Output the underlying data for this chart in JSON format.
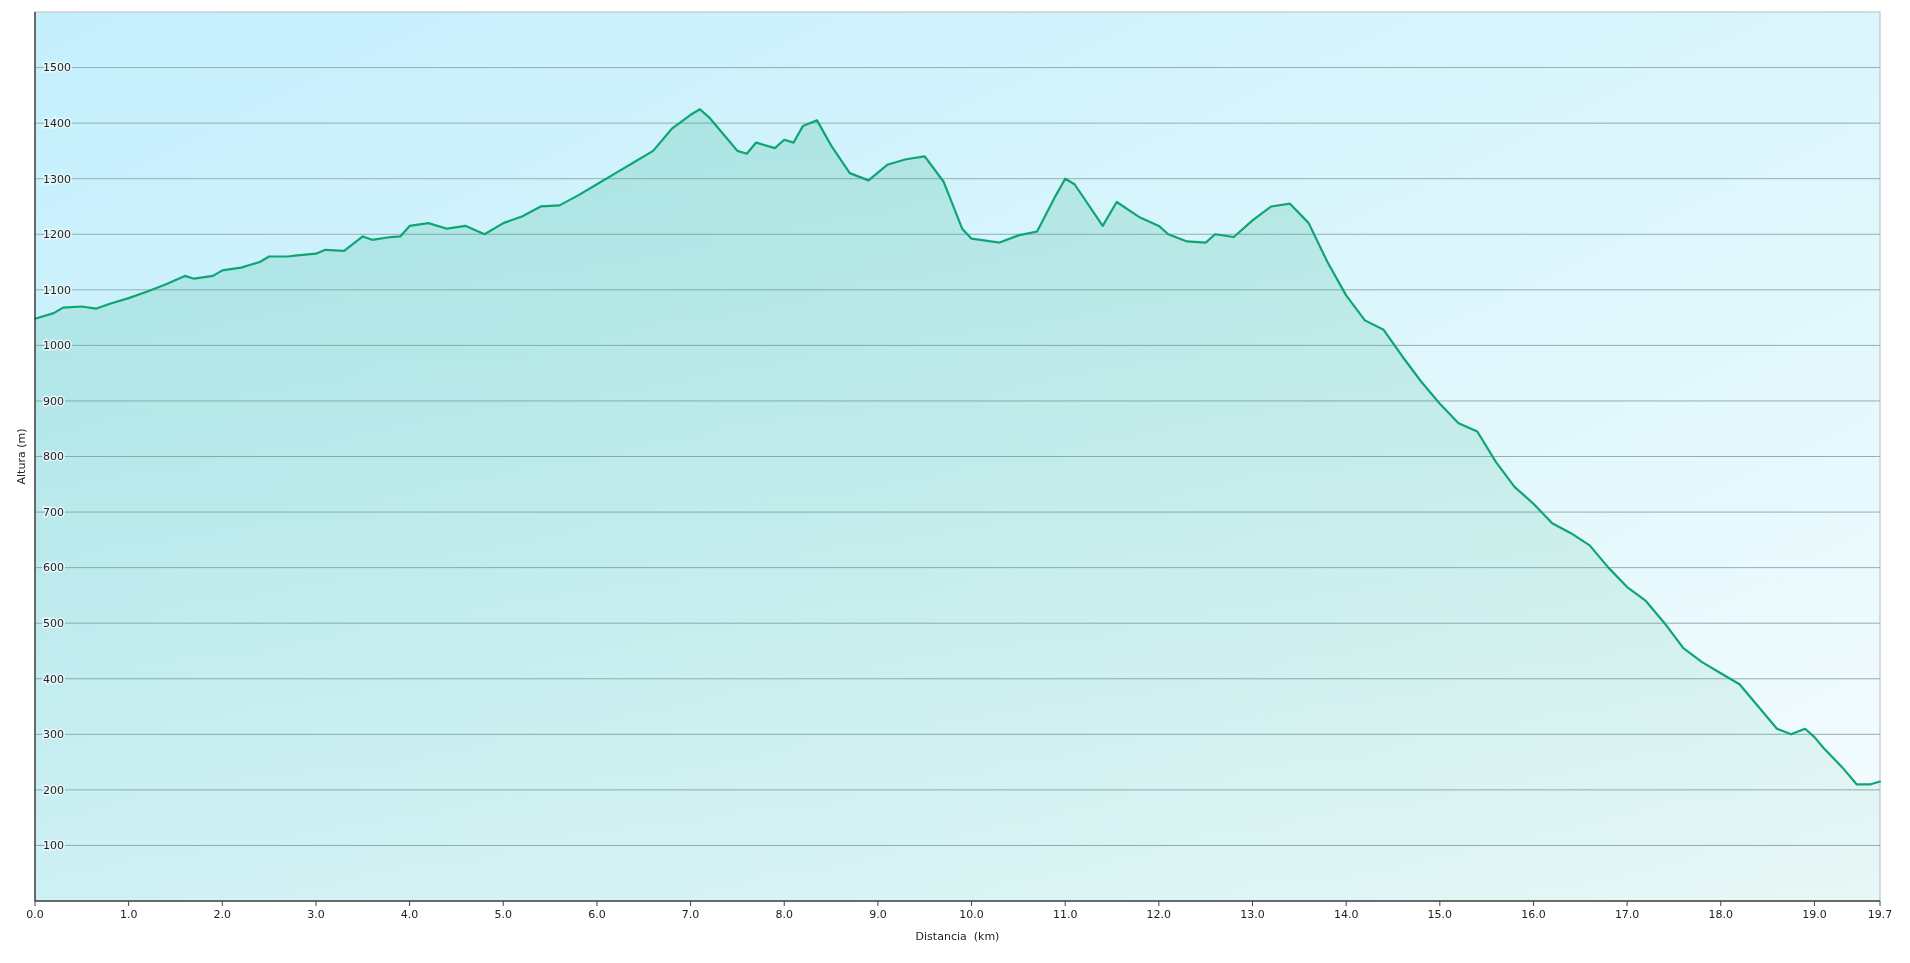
{
  "chart_data": {
    "type": "area",
    "xlabel": "Distancia  (km)",
    "ylabel": "Altura (m)",
    "grid": "y",
    "xlim": [
      0,
      19.7
    ],
    "ylim": [
      0,
      1600
    ],
    "xticks": [
      {
        "value": 0,
        "label": "0.0"
      },
      {
        "value": 1,
        "label": "1.0"
      },
      {
        "value": 2,
        "label": "2.0"
      },
      {
        "value": 3,
        "label": "3.0"
      },
      {
        "value": 4,
        "label": "4.0"
      },
      {
        "value": 5,
        "label": "5.0"
      },
      {
        "value": 6,
        "label": "6.0"
      },
      {
        "value": 7,
        "label": "7.0"
      },
      {
        "value": 8,
        "label": "8.0"
      },
      {
        "value": 9,
        "label": "9.0"
      },
      {
        "value": 10,
        "label": "10.0"
      },
      {
        "value": 11,
        "label": "11.0"
      },
      {
        "value": 12,
        "label": "12.0"
      },
      {
        "value": 13,
        "label": "13.0"
      },
      {
        "value": 14,
        "label": "14.0"
      },
      {
        "value": 15,
        "label": "15.0"
      },
      {
        "value": 16,
        "label": "16.0"
      },
      {
        "value": 17,
        "label": "17.0"
      },
      {
        "value": 18,
        "label": "18.0"
      },
      {
        "value": 19,
        "label": "19.0"
      },
      19.7
    ],
    "yticks": [
      100,
      200,
      300,
      400,
      500,
      600,
      700,
      800,
      900,
      1000,
      1100,
      1200,
      1300,
      1400,
      1500
    ],
    "x": [
      0,
      0.2,
      0.3,
      0.5,
      0.65,
      0.8,
      1.0,
      1.2,
      1.4,
      1.6,
      1.7,
      1.9,
      2.0,
      2.2,
      2.3,
      2.4,
      2.5,
      2.7,
      2.8,
      3.0,
      3.1,
      3.3,
      3.5,
      3.6,
      3.8,
      3.9,
      4.0,
      4.2,
      4.4,
      4.6,
      4.8,
      5.0,
      5.2,
      5.4,
      5.6,
      5.8,
      6.0,
      6.2,
      6.4,
      6.6,
      6.8,
      7.0,
      7.1,
      7.2,
      7.4,
      7.5,
      7.6,
      7.7,
      7.9,
      8.0,
      8.1,
      8.2,
      8.35,
      8.5,
      8.7,
      8.9,
      9.1,
      9.3,
      9.5,
      9.7,
      9.9,
      10.0,
      10.3,
      10.5,
      10.7,
      10.9,
      11.0,
      11.1,
      11.4,
      11.55,
      11.8,
      12.0,
      12.1,
      12.3,
      12.5,
      12.6,
      12.8,
      13.0,
      13.2,
      13.4,
      13.6,
      13.8,
      14.0,
      14.2,
      14.4,
      14.6,
      14.8,
      15.0,
      15.2,
      15.4,
      15.6,
      15.8,
      16.0,
      16.2,
      16.4,
      16.6,
      16.8,
      17.0,
      17.2,
      17.4,
      17.6,
      17.8,
      18.0,
      18.2,
      18.4,
      18.6,
      18.75,
      18.9,
      19.0,
      19.1,
      19.3,
      19.45,
      19.6,
      19.7
    ],
    "series": [
      {
        "color": "#0fa572",
        "values": [
          1048,
          1058,
          1068,
          1070,
          1066,
          1075,
          1085,
          1097,
          1110,
          1125,
          1120,
          1125,
          1135,
          1140,
          1145,
          1150,
          1160,
          1160,
          1162,
          1165,
          1172,
          1170,
          1196,
          1190,
          1195,
          1196,
          1215,
          1220,
          1210,
          1215,
          1200,
          1220,
          1232,
          1250,
          1252,
          1270,
          1290,
          1310,
          1330,
          1350,
          1390,
          1415,
          1425,
          1410,
          1370,
          1350,
          1345,
          1365,
          1355,
          1370,
          1365,
          1395,
          1405,
          1360,
          1310,
          1297,
          1325,
          1335,
          1340,
          1295,
          1210,
          1192,
          1185,
          1198,
          1205,
          1270,
          1300,
          1290,
          1215,
          1258,
          1230,
          1215,
          1200,
          1187,
          1185,
          1200,
          1195,
          1225,
          1250,
          1255,
          1220,
          1150,
          1090,
          1045,
          1028,
          980,
          935,
          895,
          860,
          845,
          790,
          745,
          715,
          680,
          662,
          640,
          600,
          565,
          540,
          500,
          455,
          430,
          410,
          390,
          350,
          310,
          300,
          310,
          295,
          275,
          240,
          210,
          210,
          215
        ]
      }
    ]
  }
}
